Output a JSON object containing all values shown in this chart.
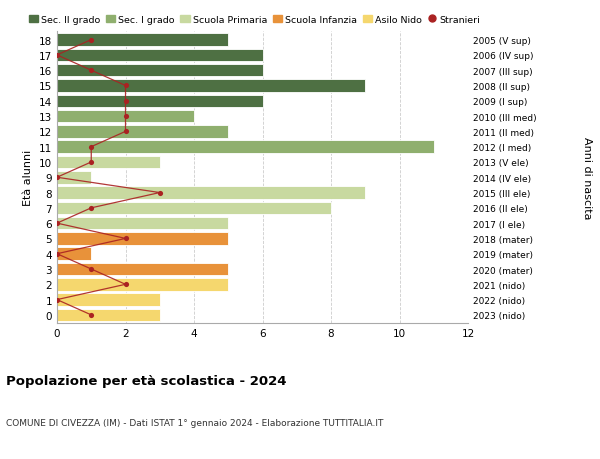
{
  "ages": [
    0,
    1,
    2,
    3,
    4,
    5,
    6,
    7,
    8,
    9,
    10,
    11,
    12,
    13,
    14,
    15,
    16,
    17,
    18
  ],
  "years_labels": [
    "2023 (nido)",
    "2022 (nido)",
    "2021 (nido)",
    "2020 (mater)",
    "2019 (mater)",
    "2018 (mater)",
    "2017 (I ele)",
    "2016 (II ele)",
    "2015 (III ele)",
    "2014 (IV ele)",
    "2013 (V ele)",
    "2012 (I med)",
    "2011 (II med)",
    "2010 (III med)",
    "2009 (I sup)",
    "2008 (II sup)",
    "2007 (III sup)",
    "2006 (IV sup)",
    "2005 (V sup)"
  ],
  "bar_values": [
    3,
    3,
    5,
    5,
    1,
    5,
    5,
    8,
    9,
    1,
    3,
    11,
    5,
    4,
    6,
    9,
    6,
    6,
    5
  ],
  "bar_colors": [
    "#f5d76e",
    "#f5d76e",
    "#f5d76e",
    "#e8923a",
    "#e8923a",
    "#e8923a",
    "#c8d9a0",
    "#c8d9a0",
    "#c8d9a0",
    "#c8d9a0",
    "#c8d9a0",
    "#8faf6e",
    "#8faf6e",
    "#8faf6e",
    "#4e7043",
    "#4e7043",
    "#4e7043",
    "#4e7043",
    "#4e7043"
  ],
  "stranieri_values": [
    1,
    0,
    2,
    1,
    0,
    2,
    0,
    1,
    3,
    0,
    1,
    1,
    2,
    2,
    2,
    2,
    1,
    0,
    1
  ],
  "legend_labels": [
    "Sec. II grado",
    "Sec. I grado",
    "Scuola Primaria",
    "Scuola Infanzia",
    "Asilo Nido",
    "Stranieri"
  ],
  "legend_colors": [
    "#4e7043",
    "#8faf6e",
    "#c8d9a0",
    "#e8923a",
    "#f5d76e",
    "#aa2222"
  ],
  "ylabel": "Età alunni",
  "ylabel_right": "Anni di nascita",
  "title": "Popolazione per età scolastica - 2024",
  "subtitle": "COMUNE DI CIVEZZA (IM) - Dati ISTAT 1° gennaio 2024 - Elaborazione TUTTITALIA.IT",
  "xlim": [
    0,
    12
  ],
  "bar_height": 0.82,
  "stranieri_color": "#aa2222",
  "stranieri_line_color": "#aa2222",
  "background_color": "#ffffff",
  "grid_color": "#cccccc"
}
